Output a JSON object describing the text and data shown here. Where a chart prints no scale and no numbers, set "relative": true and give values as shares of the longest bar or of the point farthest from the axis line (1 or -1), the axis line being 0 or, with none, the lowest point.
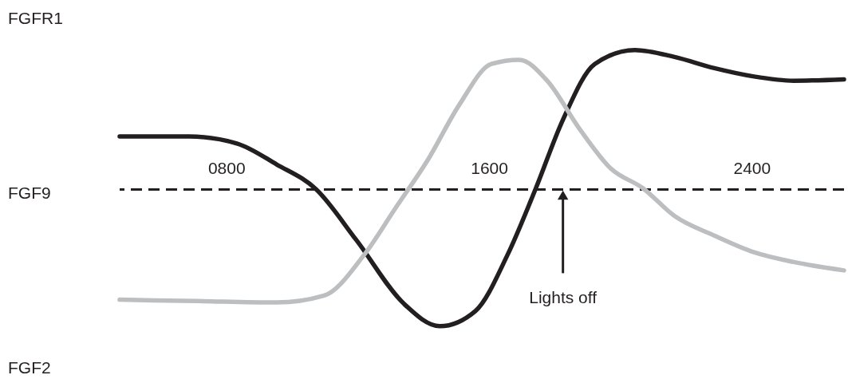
{
  "chart_data": {
    "type": "line",
    "relative": true,
    "xlim": [
      475,
      2681
    ],
    "xticks": [
      {
        "value": 800,
        "label": "0800"
      },
      {
        "value": 1600,
        "label": "1600"
      },
      {
        "value": 2400,
        "label": "2400"
      }
    ],
    "series": [
      {
        "color": "#231f20",
        "x": [
          475,
          686,
          832,
          953,
          1074,
          1195,
          1341,
          1450,
          1559,
          1656,
          1741,
          1825,
          1922,
          2044,
          2165,
          2286,
          2407,
          2528,
          2681
        ],
        "values": [
          0.38,
          0.38,
          0.33,
          0.18,
          0,
          -0.36,
          -0.82,
          -0.98,
          -0.87,
          -0.47,
          0,
          0.5,
          0.9,
          1,
          0.95,
          0.87,
          0.81,
          0.78,
          0.79
        ]
      },
      {
        "color": "#bcbec0",
        "x": [
          475,
          710,
          953,
          1098,
          1219,
          1316,
          1413,
          1510,
          1607,
          1692,
          1777,
          1874,
          1971,
          2068,
          2165,
          2286,
          2407,
          2528,
          2681
        ],
        "values": [
          -0.79,
          -0.8,
          -0.81,
          -0.76,
          -0.47,
          -0.13,
          0.21,
          0.61,
          0.9,
          0.93,
          0.78,
          0.44,
          0.15,
          0.01,
          -0.19,
          -0.33,
          -0.45,
          -0.52,
          -0.58
        ]
      }
    ],
    "ref_lines": [
      {
        "axis": "y",
        "value": 0,
        "color": "#231f20",
        "line_style": "dashed"
      }
    ],
    "annotations": [
      "FGFR1",
      "FGF9",
      "FGF2",
      {
        "text": "Lights off",
        "x": 1825,
        "y": 0
      }
    ]
  }
}
